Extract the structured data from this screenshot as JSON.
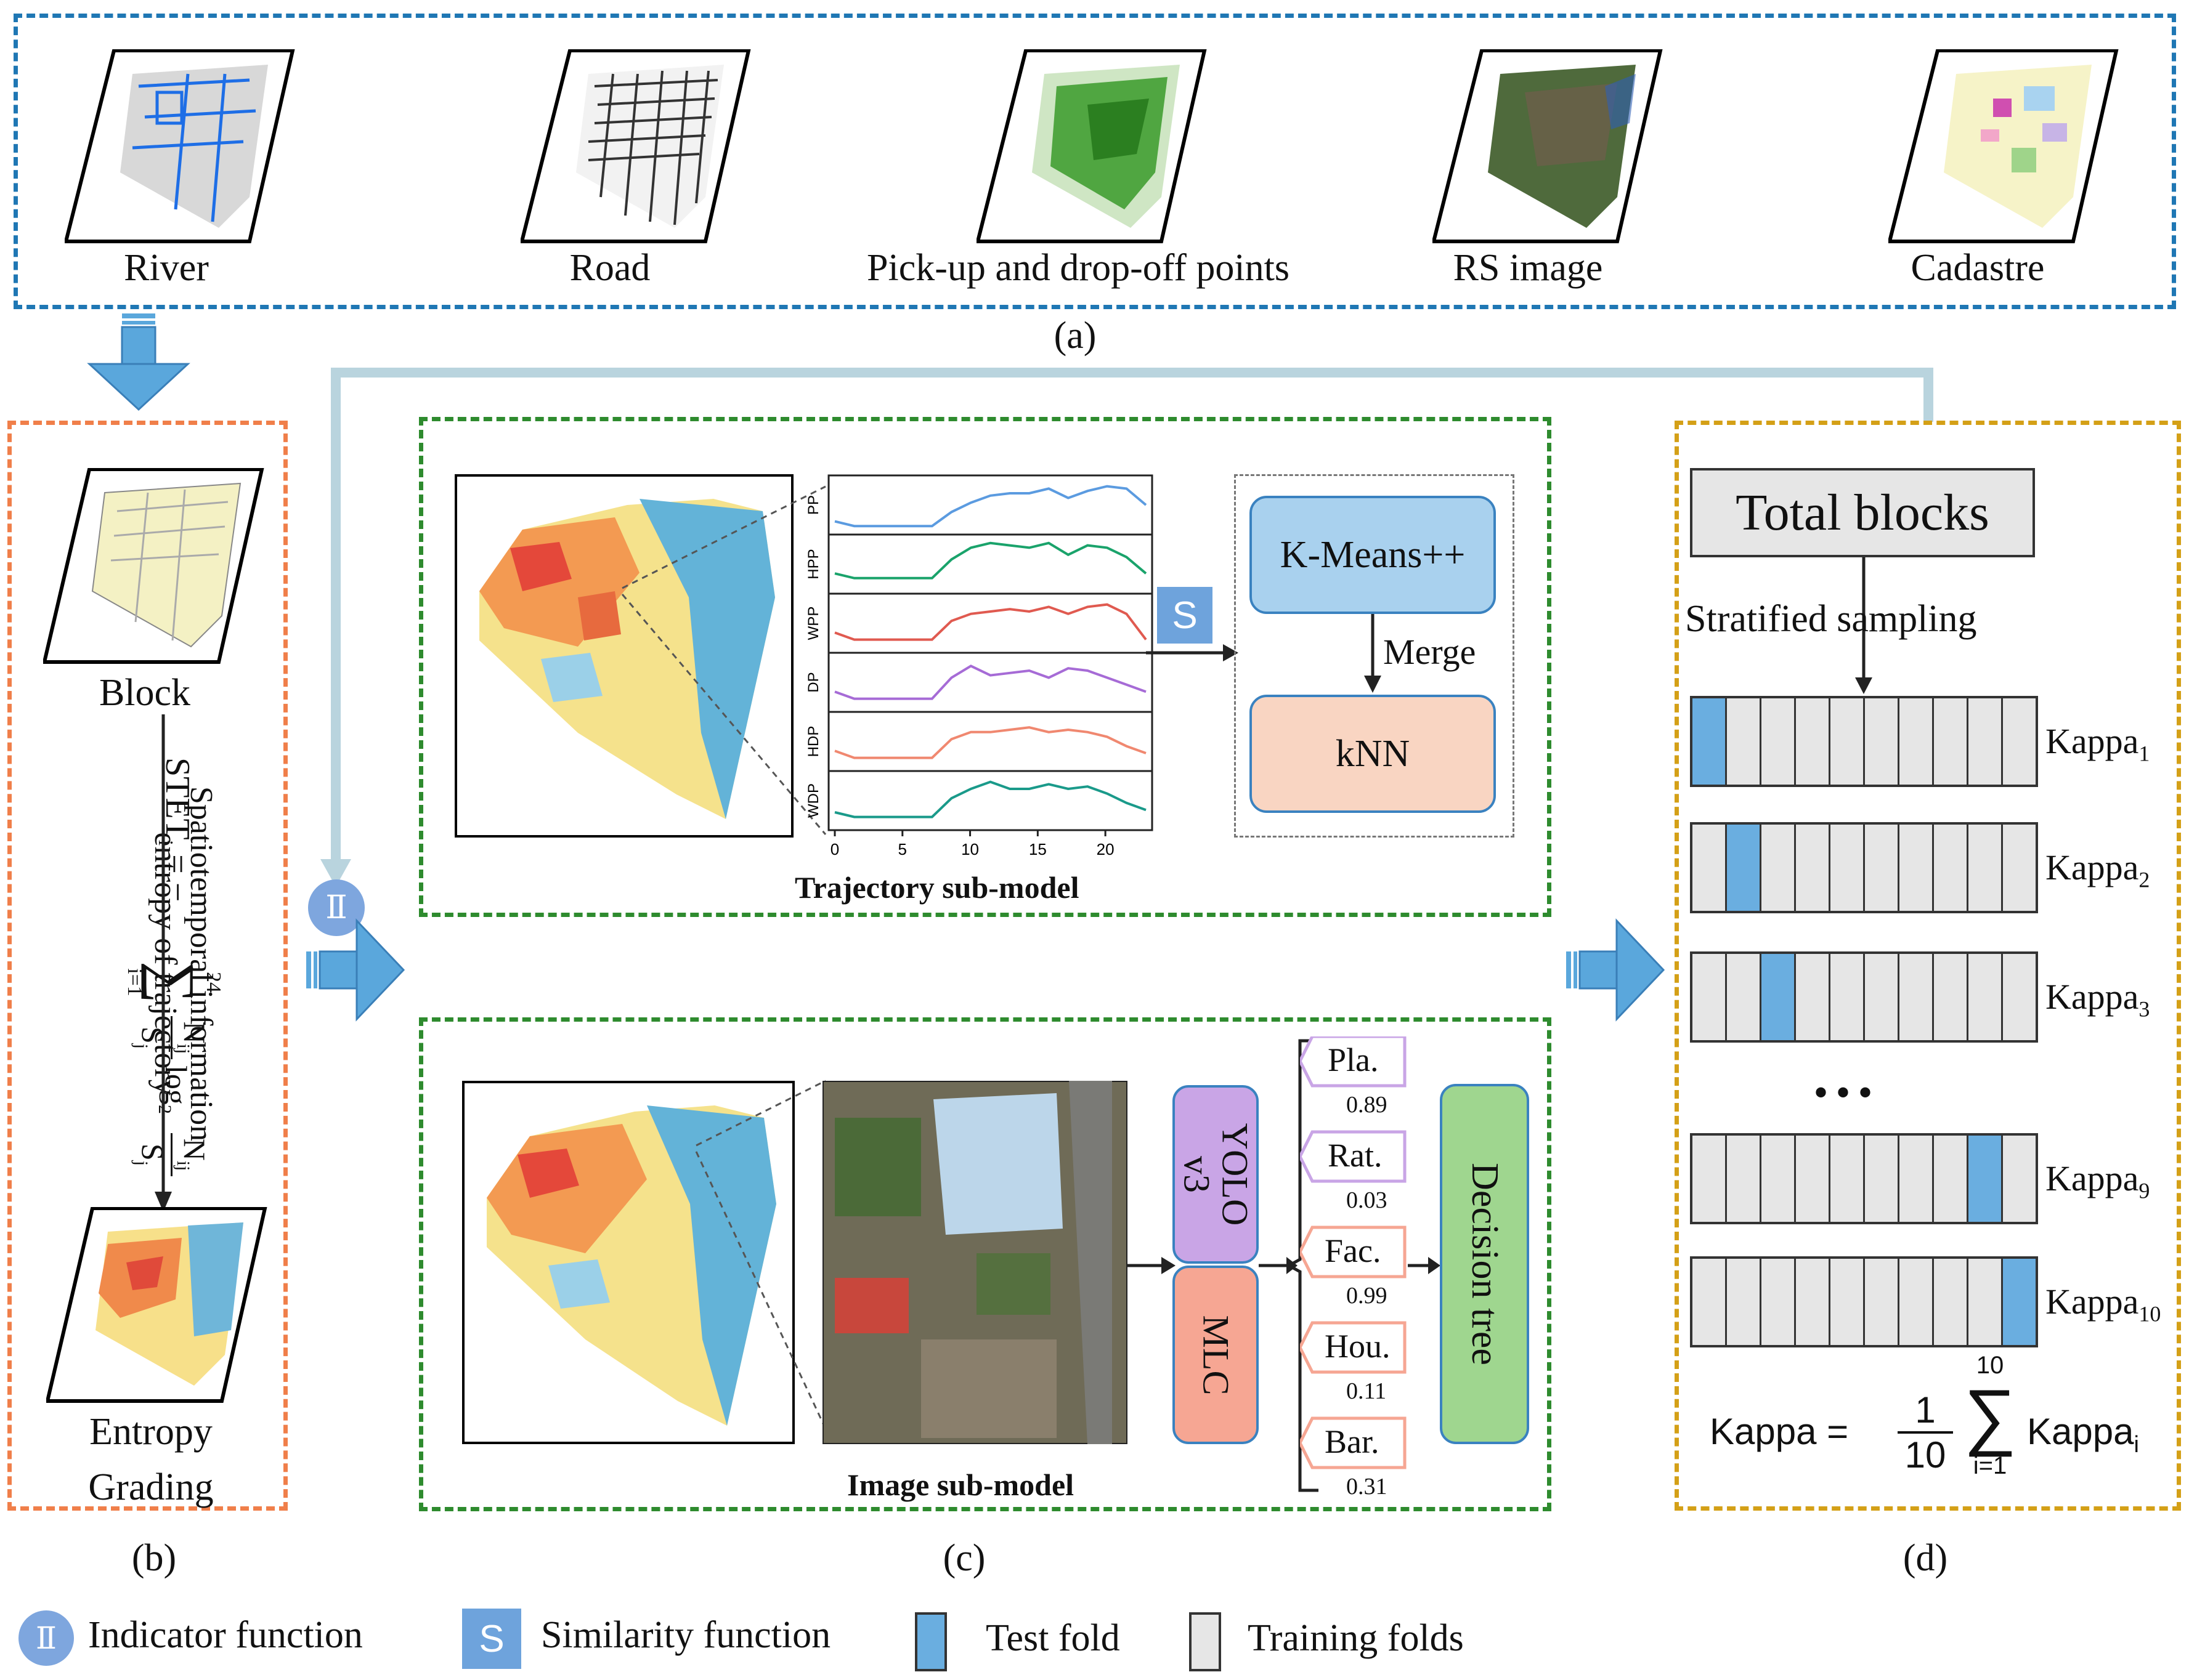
{
  "panel_a": {
    "caption": "(a)",
    "items": [
      {
        "label": "River"
      },
      {
        "label": "Road"
      },
      {
        "label": "Pick-up and drop-off points"
      },
      {
        "label": "RS image"
      },
      {
        "label": "Cadastre"
      }
    ]
  },
  "panel_b": {
    "caption": "(b)",
    "block_label": "Block",
    "entropy_label_1": "Entropy",
    "entropy_label_2": "Grading",
    "rotated_text_1": "Spatiotemporal information",
    "rotated_text_2": "entropy of trajectory",
    "formula_lhs": "STET",
    "formula_lhs_sub": "i",
    "formula_eq": " = −",
    "sum_upper": "24",
    "sum_lower": "i=1",
    "frac_num": "N",
    "frac_num_sub": "ij",
    "frac_den": "S",
    "frac_den_sub": "j",
    "log_text": "log",
    "log_sub": "2"
  },
  "panel_c": {
    "caption": "(c)",
    "trajectory_title": "Trajectory sub-model",
    "image_title": "Image sub-model",
    "series_labels": [
      "PP",
      "HPP",
      "WPP",
      "DP",
      "HDP",
      "WDP"
    ],
    "x_ticks": [
      "0",
      "5",
      "10",
      "15",
      "20"
    ],
    "similarity_badge": "S",
    "indicator_badge": "Ⅱ",
    "kmeans_label": "K-Means++",
    "merge_label": "Merge",
    "knn_label": "kNN",
    "yolo_label_1": "YOLO",
    "yolo_label_2": "v3",
    "mlc_label": "MLC",
    "decision_tree_label": "Decision tree",
    "features": [
      {
        "name": "Pla.",
        "value": "0.89"
      },
      {
        "name": "Rat.",
        "value": "0.03"
      },
      {
        "name": "Fac.",
        "value": "0.99"
      },
      {
        "name": "Hou.",
        "value": "0.11"
      },
      {
        "name": "Bar.",
        "value": "0.31"
      }
    ]
  },
  "panel_d": {
    "caption": "(d)",
    "total_blocks": "Total blocks",
    "sampling_label": "Stratified sampling",
    "ellipsis": "• • •",
    "kappa_rows": [
      {
        "label": "Kappa",
        "sub": "1",
        "test_index": 0
      },
      {
        "label": "Kappa",
        "sub": "2",
        "test_index": 1
      },
      {
        "label": "Kappa",
        "sub": "3",
        "test_index": 2
      },
      {
        "label": "Kappa",
        "sub": "9",
        "test_index": 8
      },
      {
        "label": "Kappa",
        "sub": "10",
        "test_index": 9
      }
    ],
    "formula_lhs": "Kappa =",
    "formula_num": "1",
    "formula_den": "10",
    "formula_upper": "10",
    "formula_lower": "i=1",
    "formula_rhs": "Kappa",
    "formula_rhs_sub": "i"
  },
  "legend": {
    "indicator_badge": "Ⅱ",
    "indicator_label": "Indicator function",
    "similarity_badge": "S",
    "similarity_label": "Similarity function",
    "test_label": "Test fold",
    "training_label": "Training folds"
  },
  "colors": {
    "blue_border": "#1f77b4",
    "orange_border": "#f07f4a",
    "green_border": "#2e8b2e",
    "gold_border": "#d4a017",
    "arrow_fill": "#5aa7dc",
    "test_fold": "#6aaee0",
    "training_fold": "#e6e6e6"
  }
}
